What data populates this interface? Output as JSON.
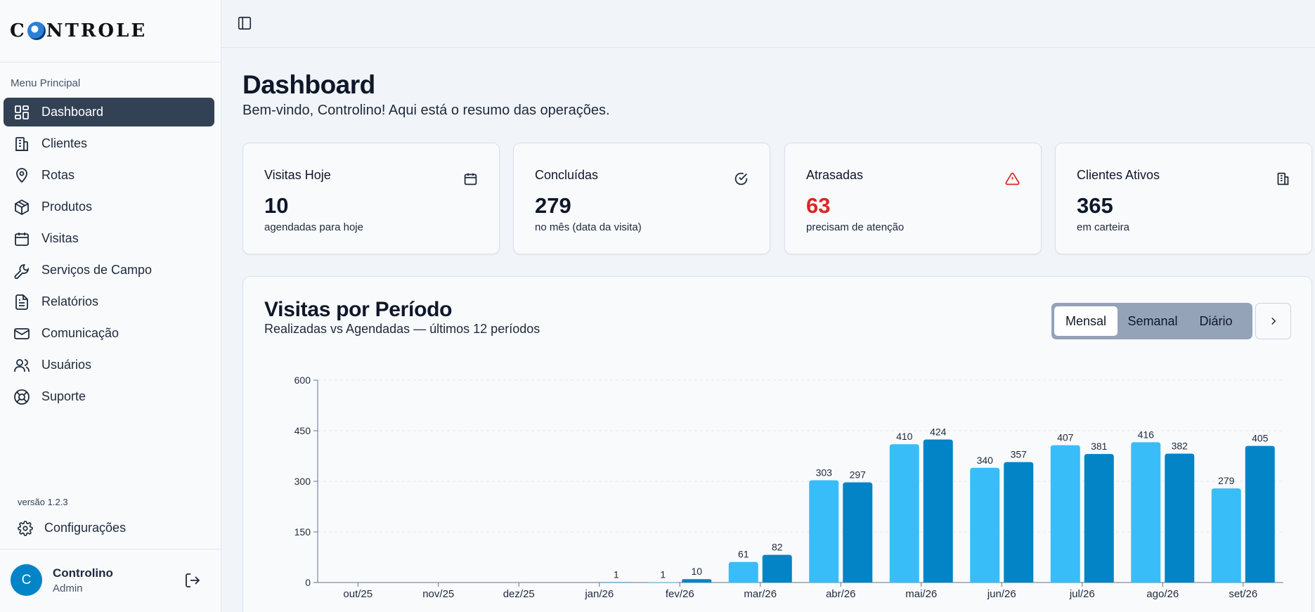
{
  "brand": {
    "logo_prefix": "C",
    "logo_suffix": "NTROLE"
  },
  "sidebar": {
    "menu_title": "Menu Principal",
    "items": [
      {
        "label": "Dashboard",
        "icon": "dashboard-icon"
      },
      {
        "label": "Clientes",
        "icon": "building-icon"
      },
      {
        "label": "Rotas",
        "icon": "map-pin-icon"
      },
      {
        "label": "Produtos",
        "icon": "package-icon"
      },
      {
        "label": "Visitas",
        "icon": "calendar-icon"
      },
      {
        "label": "Serviços de Campo",
        "icon": "wrench-icon"
      },
      {
        "label": "Relatórios",
        "icon": "file-text-icon"
      },
      {
        "label": "Comunicação",
        "icon": "mail-icon"
      },
      {
        "label": "Usuários",
        "icon": "users-icon"
      },
      {
        "label": "Suporte",
        "icon": "life-buoy-icon"
      }
    ],
    "version": "versão 1.2.3",
    "settings_label": "Configurações"
  },
  "user": {
    "initial": "C",
    "name": "Controlino",
    "role": "Admin"
  },
  "header": {
    "title": "Dashboard",
    "subtitle": "Bem-vindo, Controlino! Aqui está o resumo das operações."
  },
  "cards": [
    {
      "title": "Visitas Hoje",
      "value": "10",
      "note": "agendadas para hoje",
      "icon": "calendar-icon"
    },
    {
      "title": "Concluídas",
      "value": "279",
      "note": "no mês (data da visita)",
      "icon": "check-circle-icon"
    },
    {
      "title": "Atrasadas",
      "value": "63",
      "note": "precisam de atenção",
      "icon": "alert-triangle-icon"
    },
    {
      "title": "Clientes Ativos",
      "value": "365",
      "note": "em carteira",
      "icon": "building-icon"
    }
  ],
  "chart_panel": {
    "title": "Visitas por Período",
    "subtitle": "Realizadas vs Agendadas — últimos 12 períodos",
    "periods": [
      "Mensal",
      "Semanal",
      "Diário"
    ],
    "active_period": "Mensal"
  },
  "colors": {
    "series_light": "#38bdf8",
    "series_dark": "#0284c7",
    "alert": "#dc2626",
    "active_nav": "#334155"
  },
  "chart_data": {
    "type": "bar",
    "categories": [
      "out/25",
      "nov/25",
      "dez/25",
      "jan/26",
      "fev/26",
      "mar/26",
      "abr/26",
      "mai/26",
      "jun/26",
      "jul/26",
      "ago/26",
      "set/26"
    ],
    "series": [
      {
        "values": [
          0,
          0,
          0,
          0,
          1,
          61,
          303,
          410,
          340,
          407,
          416,
          279
        ],
        "color": "#38bdf8"
      },
      {
        "values": [
          0,
          0,
          0,
          1,
          10,
          82,
          297,
          424,
          357,
          381,
          382,
          405
        ],
        "color": "#0284c7"
      }
    ],
    "ylim": [
      0,
      600
    ],
    "yticks": [
      0,
      150,
      300,
      450,
      600
    ],
    "grid": true
  }
}
